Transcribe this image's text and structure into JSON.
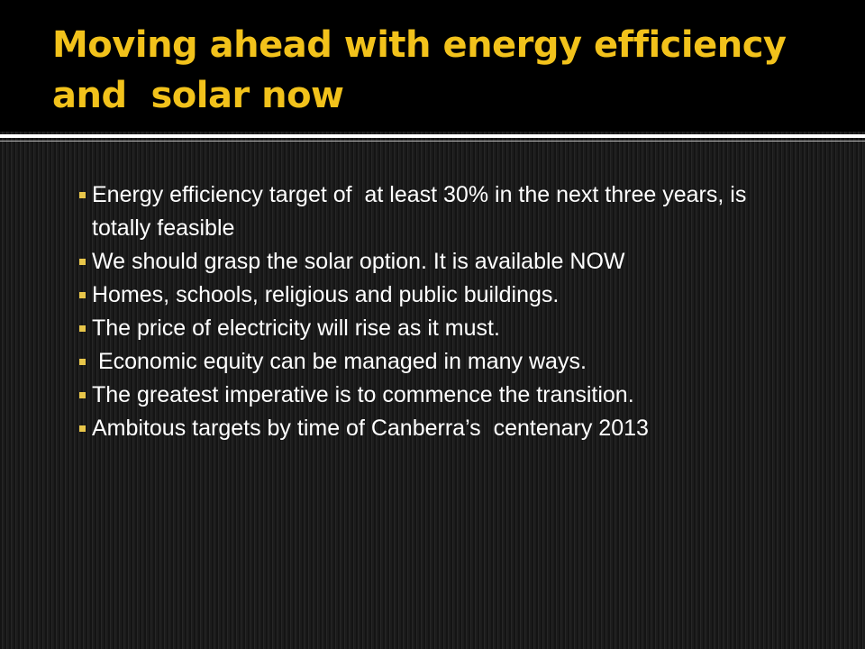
{
  "header": {
    "title": "Moving ahead with energy efficiency and  solar now"
  },
  "bullets": [
    "Energy efficiency target of  at least 30% in the next three years, is totally feasible",
    "We should grasp the solar option. It is available NOW",
    "Homes, schools, religious and public buildings.",
    "The price of electricity will rise as it must.",
    " Economic equity can be managed in many ways.",
    "The greatest imperative is to commence the transition.",
    "Ambitous targets by time of Canberra’s  centenary 2013"
  ]
}
